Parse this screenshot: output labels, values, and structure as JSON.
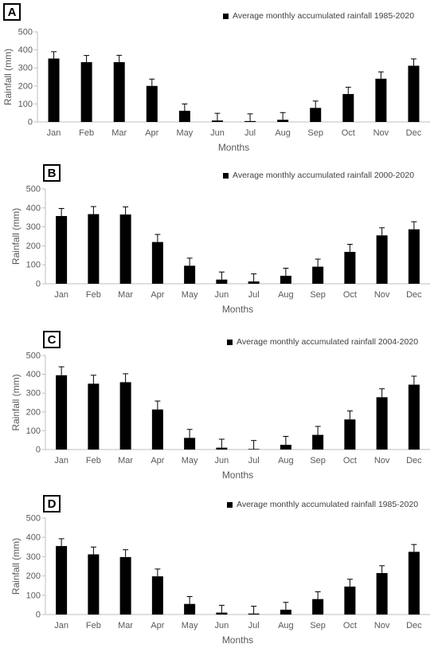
{
  "chart_data": [
    {
      "type": "bar",
      "panel_label": "A",
      "legend": "Average monthly accumulated rainfall 1985-2020",
      "xlabel": "Months",
      "ylabel": "Rainfall (mm)",
      "ylim": [
        0,
        500
      ],
      "yticks": [
        "0",
        "100",
        "200",
        "300",
        "400",
        "500"
      ],
      "categories": [
        "Jan",
        "Feb",
        "Mar",
        "Apr",
        "May",
        "Jun",
        "Jul",
        "Aug",
        "Sep",
        "Oct",
        "Nov",
        "Dec"
      ],
      "series": [
        {
          "name": "Average monthly accumulated rainfall 1985-2020",
          "values": [
            352,
            332,
            332,
            200,
            62,
            8,
            5,
            12,
            78,
            155,
            240,
            312
          ],
          "error": [
            38,
            37,
            38,
            38,
            38,
            40,
            40,
            40,
            38,
            38,
            38,
            38
          ]
        }
      ]
    },
    {
      "type": "bar",
      "panel_label": "B",
      "legend": "Average monthly accumulated rainfall 2000-2020",
      "xlabel": "Months",
      "ylabel": "Rainfall (mm)",
      "ylim": [
        0,
        500
      ],
      "yticks": [
        "0",
        "100",
        "200",
        "300",
        "400",
        "500"
      ],
      "categories": [
        "Jan",
        "Feb",
        "Mar",
        "Apr",
        "May",
        "Jun",
        "Jul",
        "Aug",
        "Sep",
        "Oct",
        "Nov",
        "Dec"
      ],
      "series": [
        {
          "name": "Average monthly accumulated rainfall 2000-2020",
          "values": [
            357,
            367,
            365,
            220,
            95,
            22,
            12,
            42,
            90,
            168,
            255,
            287
          ],
          "error": [
            40,
            40,
            40,
            40,
            40,
            40,
            40,
            40,
            40,
            40,
            40,
            40
          ]
        }
      ]
    },
    {
      "type": "bar",
      "panel_label": "C",
      "legend": "Average monthly accumulated rainfall 2004-2020",
      "xlabel": "Months",
      "ylabel": "Rainfall (mm)",
      "ylim": [
        0,
        500
      ],
      "yticks": [
        "0",
        "100",
        "200",
        "300",
        "400",
        "500"
      ],
      "categories": [
        "Jan",
        "Feb",
        "Mar",
        "Apr",
        "May",
        "Jun",
        "Jul",
        "Aug",
        "Sep",
        "Oct",
        "Nov",
        "Dec"
      ],
      "series": [
        {
          "name": "Average monthly accumulated rainfall 2004-2020",
          "values": [
            395,
            350,
            358,
            213,
            62,
            10,
            3,
            25,
            78,
            160,
            278,
            345
          ],
          "error": [
            45,
            45,
            45,
            45,
            45,
            45,
            45,
            45,
            45,
            45,
            45,
            45
          ]
        }
      ]
    },
    {
      "type": "bar",
      "panel_label": "D",
      "legend": "Average monthly accumulated rainfall 1985-2020",
      "xlabel": "Months",
      "ylabel": "Rainfall (mm)",
      "ylim": [
        0,
        500
      ],
      "yticks": [
        "0",
        "100",
        "200",
        "300",
        "400",
        "500"
      ],
      "categories": [
        "Jan",
        "Feb",
        "Mar",
        "Apr",
        "May",
        "Jun",
        "Jul",
        "Aug",
        "Sep",
        "Oct",
        "Nov",
        "Dec"
      ],
      "series": [
        {
          "name": "Average monthly accumulated rainfall 1985-2020",
          "values": [
            355,
            312,
            298,
            198,
            55,
            10,
            5,
            25,
            80,
            145,
            215,
            325
          ],
          "error": [
            38,
            38,
            38,
            38,
            38,
            38,
            38,
            38,
            38,
            38,
            38,
            38
          ]
        }
      ]
    }
  ]
}
